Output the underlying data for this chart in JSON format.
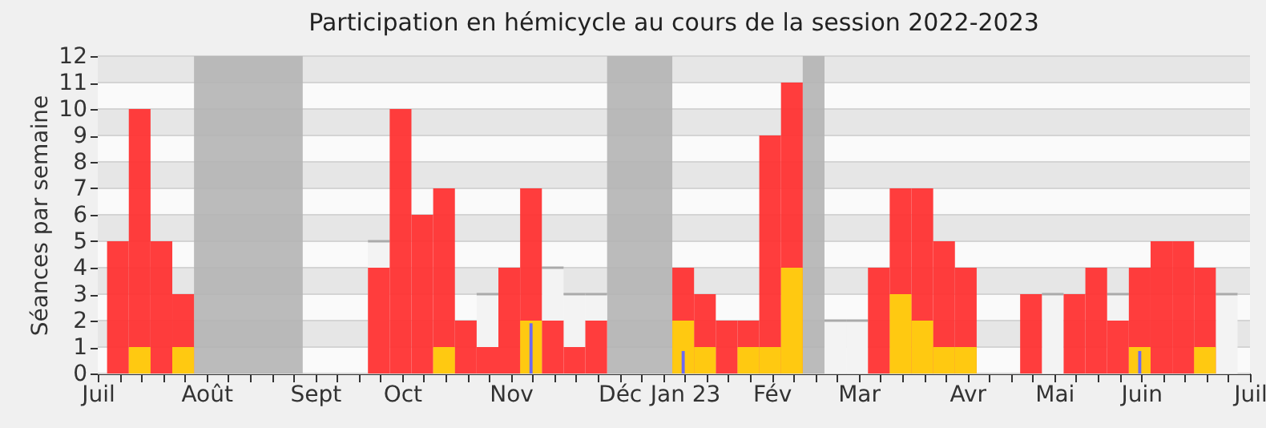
{
  "chart_data": {
    "type": "bar",
    "title": "Participation en hémicycle au cours de la session 2022-2023",
    "ylabel": "Séances par semaine",
    "xlim": [
      "2022-07-01",
      "2023-07-07"
    ],
    "ylim": [
      0,
      12
    ],
    "yticks": [
      0,
      1,
      2,
      3,
      4,
      5,
      6,
      7,
      8,
      9,
      10,
      11,
      12
    ],
    "grid": true,
    "xticks": [
      {
        "value": "2022-07-01",
        "label": "Juil"
      },
      {
        "value": "2022-07-08",
        "label": null
      },
      {
        "value": "2022-07-15",
        "label": null
      },
      {
        "value": "2022-07-22",
        "label": null
      },
      {
        "value": "2022-07-29",
        "label": null
      },
      {
        "value": "2022-08-05",
        "label": "Août"
      },
      {
        "value": "2022-08-12",
        "label": null
      },
      {
        "value": "2022-08-19",
        "label": null
      },
      {
        "value": "2022-08-26",
        "label": null
      },
      {
        "value": "2022-09-02",
        "label": null
      },
      {
        "value": "2022-09-09",
        "label": "Sept"
      },
      {
        "value": "2022-09-16",
        "label": null
      },
      {
        "value": "2022-09-23",
        "label": null
      },
      {
        "value": "2022-09-30",
        "label": null
      },
      {
        "value": "2022-10-07",
        "label": "Oct"
      },
      {
        "value": "2022-10-14",
        "label": null
      },
      {
        "value": "2022-10-21",
        "label": null
      },
      {
        "value": "2022-10-28",
        "label": null
      },
      {
        "value": "2022-11-04",
        "label": null
      },
      {
        "value": "2022-11-11",
        "label": "Nov"
      },
      {
        "value": "2022-11-18",
        "label": null
      },
      {
        "value": "2022-11-25",
        "label": null
      },
      {
        "value": "2022-12-02",
        "label": null
      },
      {
        "value": "2022-12-09",
        "label": null
      },
      {
        "value": "2022-12-16",
        "label": "Déc"
      },
      {
        "value": "2022-12-23",
        "label": null
      },
      {
        "value": "2022-12-30",
        "label": null
      },
      {
        "value": "2023-01-06",
        "label": "Jan 23"
      },
      {
        "value": "2023-01-13",
        "label": null
      },
      {
        "value": "2023-01-20",
        "label": null
      },
      {
        "value": "2023-01-27",
        "label": null
      },
      {
        "value": "2023-02-03",
        "label": "Fév"
      },
      {
        "value": "2023-02-10",
        "label": null
      },
      {
        "value": "2023-02-17",
        "label": null
      },
      {
        "value": "2023-02-24",
        "label": null
      },
      {
        "value": "2023-03-03",
        "label": "Mar"
      },
      {
        "value": "2023-03-10",
        "label": null
      },
      {
        "value": "2023-03-17",
        "label": null
      },
      {
        "value": "2023-03-24",
        "label": null
      },
      {
        "value": "2023-03-31",
        "label": null
      },
      {
        "value": "2023-04-07",
        "label": "Avr"
      },
      {
        "value": "2023-04-14",
        "label": null
      },
      {
        "value": "2023-04-21",
        "label": null
      },
      {
        "value": "2023-04-28",
        "label": null
      },
      {
        "value": "2023-05-05",
        "label": "Mai"
      },
      {
        "value": "2023-05-12",
        "label": null
      },
      {
        "value": "2023-05-19",
        "label": null
      },
      {
        "value": "2023-05-26",
        "label": null
      },
      {
        "value": "2023-06-02",
        "label": "Juin"
      },
      {
        "value": "2023-06-09",
        "label": null
      },
      {
        "value": "2023-06-16",
        "label": null
      },
      {
        "value": "2023-06-23",
        "label": null
      },
      {
        "value": "2023-06-30",
        "label": null
      },
      {
        "value": "2023-07-07",
        "label": "Juil"
      }
    ],
    "bands": [
      {
        "axis": "x",
        "from": "2022-08-01",
        "to": "2022-09-05",
        "color": "#b4b4b4"
      },
      {
        "axis": "x",
        "from": "2022-12-12",
        "to": "2023-01-02",
        "color": "#b4b4b4"
      },
      {
        "axis": "x",
        "from": "2023-02-13",
        "to": "2023-02-20",
        "color": "#b4b4b4"
      }
    ],
    "series": [
      {
        "color": "#f3f3f3",
        "x": [
          "2022-09-26",
          "2022-10-31",
          "2022-11-21",
          "2022-11-28",
          "2022-12-05",
          "2023-02-20",
          "2023-02-27",
          "2023-05-01",
          "2023-05-22",
          "2023-06-26"
        ],
        "values": [
          5,
          3,
          4,
          3,
          3,
          2,
          2,
          3,
          3,
          3
        ]
      },
      {
        "color": "#ff3333",
        "x": [
          "2022-07-04",
          "2022-07-11",
          "2022-07-18",
          "2022-07-25",
          "2022-09-26",
          "2022-10-03",
          "2022-10-10",
          "2022-10-17",
          "2022-10-24",
          "2022-10-31",
          "2022-11-07",
          "2022-11-14",
          "2022-11-21",
          "2022-11-28",
          "2022-12-05",
          "2023-01-02",
          "2023-01-09",
          "2023-01-16",
          "2023-01-23",
          "2023-01-30",
          "2023-02-06",
          "2023-03-06",
          "2023-03-13",
          "2023-03-20",
          "2023-03-27",
          "2023-04-03",
          "2023-04-24",
          "2023-05-08",
          "2023-05-15",
          "2023-05-22",
          "2023-05-29",
          "2023-06-05",
          "2023-06-12",
          "2023-06-19"
        ],
        "values": [
          5,
          10,
          5,
          3,
          4,
          10,
          6,
          7,
          2,
          1,
          4,
          7,
          2,
          1,
          2,
          4,
          3,
          2,
          2,
          9,
          11,
          4,
          7,
          7,
          5,
          4,
          3,
          3,
          4,
          2,
          4,
          5,
          5,
          4
        ]
      },
      {
        "color": "#ffd10f",
        "x": [
          "2022-07-11",
          "2022-07-25",
          "2022-10-17",
          "2022-11-14",
          "2023-01-02",
          "2023-01-09",
          "2023-01-23",
          "2023-01-30",
          "2023-02-06",
          "2023-03-13",
          "2023-03-20",
          "2023-03-27",
          "2023-04-03",
          "2023-05-29",
          "2023-06-19"
        ],
        "values": [
          1,
          1,
          1,
          2,
          2,
          1,
          1,
          1,
          4,
          3,
          2,
          1,
          1,
          1,
          1
        ]
      },
      {
        "color": "#6464ff",
        "x": [
          "2022-11-14",
          "2023-01-02",
          "2023-05-29"
        ],
        "values": [
          1.9,
          0.85,
          0.85
        ]
      }
    ]
  }
}
